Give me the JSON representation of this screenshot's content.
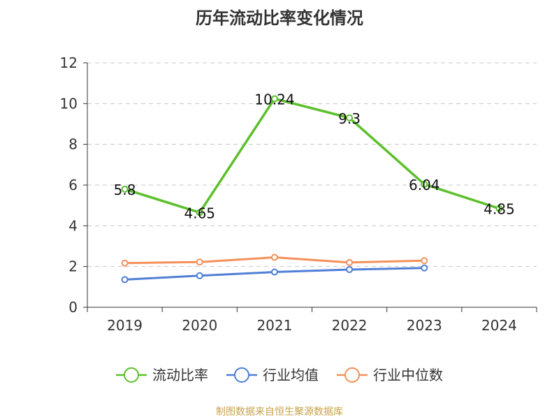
{
  "source": "制图数据来自恒生聚源数据库",
  "chart_data": {
    "type": "line",
    "title": "历年流动比率变化情况",
    "categories": [
      "2019",
      "2020",
      "2021",
      "2022",
      "2023",
      "2024"
    ],
    "ylim": [
      0,
      12
    ],
    "yticks": [
      0,
      2,
      4,
      6,
      8,
      10,
      12
    ],
    "grid": true,
    "legend_position": "bottom",
    "series": [
      {
        "name": "流动比率",
        "color": "#5cc02c",
        "values": [
          5.8,
          4.65,
          10.24,
          9.3,
          6.04,
          4.85
        ],
        "labels": [
          "5.8",
          "4.65",
          "10.24",
          "9.3",
          "6.04",
          "4.85"
        ]
      },
      {
        "name": "行业均值",
        "color": "#4f7fd6",
        "values": [
          1.36,
          1.55,
          1.73,
          1.85,
          1.93,
          null
        ]
      },
      {
        "name": "行业中位数",
        "color": "#f4905a",
        "values": [
          2.17,
          2.22,
          2.45,
          2.2,
          2.29,
          null
        ]
      }
    ]
  }
}
